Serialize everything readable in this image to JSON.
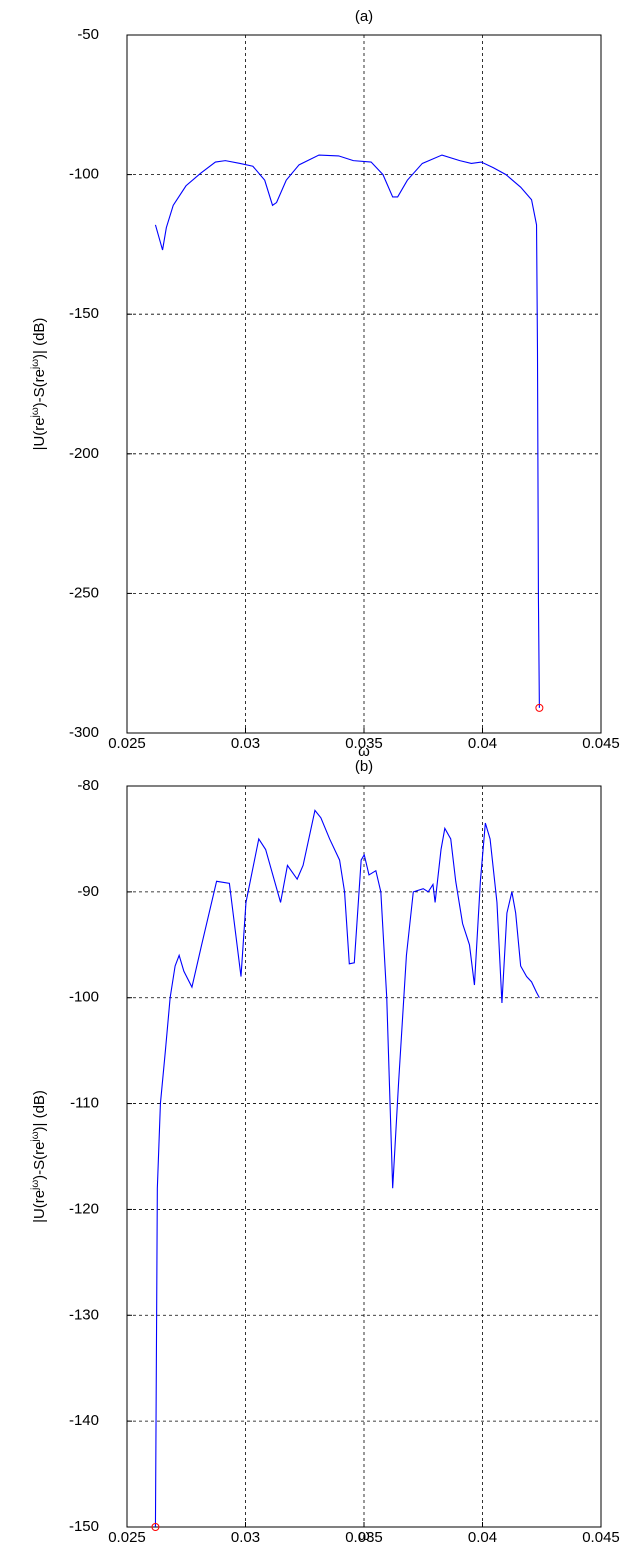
{
  "chart_data": [
    {
      "type": "line",
      "title": "(a)",
      "xlabel": "ω",
      "ylabel_parts": [
        "|U(re",
        "jω",
        ")-S(re",
        "jω",
        ")| (dB)"
      ],
      "xlim": [
        0.025,
        0.045
      ],
      "xticks": [
        0.025,
        0.03,
        0.035,
        0.04,
        0.045
      ],
      "ylim": [
        -300,
        -50
      ],
      "yticks": [
        -300,
        -250,
        -200,
        -150,
        -100,
        -50
      ],
      "grid": true,
      "series": [
        {
          "color": "#0000ff",
          "x": [
            0.0262,
            0.0265,
            0.02666,
            0.02695,
            0.02749,
            0.02811,
            0.02873,
            0.02915,
            0.02977,
            0.03031,
            0.03081,
            0.03114,
            0.03131,
            0.03172,
            0.03226,
            0.0331,
            0.03393,
            0.03455,
            0.0353,
            0.0358,
            0.03621,
            0.03642,
            0.03683,
            0.03746,
            0.03829,
            0.03904,
            0.03953,
            0.03995,
            0.04045,
            0.04099,
            0.04161,
            0.04207,
            0.04228,
            0.04232,
            0.04236,
            0.0424
          ],
          "y": [
            -118,
            -127,
            -119,
            -111,
            -104,
            -99.5,
            -95.5,
            -95,
            -96,
            -97,
            -102,
            -111,
            -110,
            -102,
            -96.5,
            -93,
            -93.3,
            -95,
            -95.5,
            -100,
            -108,
            -108,
            -102,
            -96,
            -93,
            -95,
            -96,
            -95.5,
            -97.5,
            -100,
            -104.5,
            -109,
            -118,
            -163,
            -252,
            -291
          ]
        }
      ],
      "markers": {
        "color": "#ff0000",
        "x": [
          0.0424
        ],
        "y": [
          -291
        ]
      }
    },
    {
      "type": "line",
      "title": "(b)",
      "xlabel": "ω",
      "ylabel_parts": [
        "|U(re",
        "jω",
        ")-S(re",
        "jω",
        ")| (dB)"
      ],
      "xlim": [
        0.025,
        0.045
      ],
      "xticks": [
        0.025,
        0.03,
        0.035,
        0.04,
        0.045
      ],
      "ylim": [
        -150,
        -80
      ],
      "yticks": [
        -150,
        -140,
        -130,
        -120,
        -110,
        -100,
        -90,
        -80
      ],
      "grid": true,
      "series": [
        {
          "color": "#0000ff",
          "x": [
            0.0262,
            0.02628,
            0.02641,
            0.02662,
            0.02682,
            0.02703,
            0.0272,
            0.0274,
            0.02774,
            0.02815,
            0.02878,
            0.02932,
            0.02981,
            0.03002,
            0.03056,
            0.03085,
            0.03148,
            0.03177,
            0.03218,
            0.03243,
            0.03293,
            0.03318,
            0.03355,
            0.03397,
            0.03418,
            0.03438,
            0.03459,
            0.03488,
            0.03501,
            0.03521,
            0.0355,
            0.03571,
            0.03596,
            0.03621,
            0.03646,
            0.03679,
            0.03708,
            0.0375,
            0.03771,
            0.03791,
            0.038,
            0.03825,
            0.03841,
            0.03866,
            0.03887,
            0.03916,
            0.03945,
            0.03966,
            0.03991,
            0.04012,
            0.04032,
            0.04061,
            0.04082,
            0.04103,
            0.04124,
            0.0414,
            0.04161,
            0.04186,
            0.04207,
            0.04228,
            0.0424
          ],
          "y": [
            -150,
            -118,
            -110,
            -105,
            -100,
            -97,
            -96,
            -97.5,
            -99,
            -95,
            -89,
            -89.2,
            -98,
            -91,
            -85,
            -86,
            -91,
            -87.5,
            -88.8,
            -87.5,
            -82.3,
            -83,
            -85,
            -87,
            -90,
            -96.8,
            -96.7,
            -87,
            -86.5,
            -88.4,
            -88,
            -90,
            -100,
            -118,
            -108,
            -96,
            -90,
            -89.7,
            -90,
            -89.3,
            -91,
            -86,
            -84,
            -85,
            -89,
            -93,
            -95,
            -98.8,
            -89,
            -83.5,
            -85,
            -91,
            -100.5,
            -92,
            -90,
            -92,
            -97,
            -98,
            -98.5,
            -99.5,
            -100
          ]
        }
      ],
      "markers": {
        "color": "#ff0000",
        "x": [
          0.0262
        ],
        "y": [
          -150
        ]
      }
    }
  ]
}
